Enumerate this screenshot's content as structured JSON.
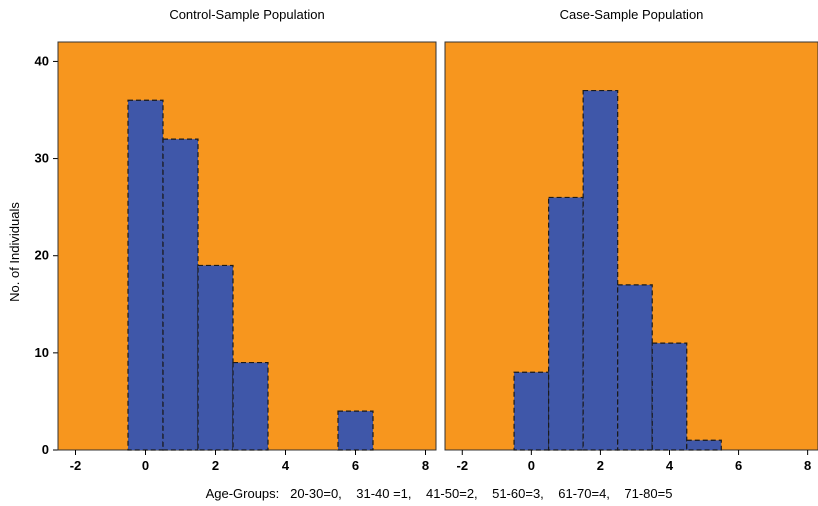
{
  "chart_data": {
    "type": "bar",
    "ylabel": "No. of Individuals",
    "xlabel": "Age-Groups:   20-30=0,    31-40 =1,    41-50=2,    51-60=3,    61-70=4,    71-80=5",
    "ylim": [
      0,
      42
    ],
    "yticks": [
      "0",
      "10",
      "20",
      "30",
      "40"
    ],
    "xlim": [
      -2.5,
      8.3
    ],
    "xticks": [
      "-2",
      "0",
      "2",
      "4",
      "6",
      "8"
    ],
    "grid": false,
    "plot_background": "#F7961E",
    "bar_color": "#3F57A9",
    "panels": [
      {
        "title": "Control-Sample Population",
        "x": [
          0,
          1,
          2,
          3,
          6
        ],
        "values": [
          36,
          32,
          19,
          9,
          4
        ]
      },
      {
        "title": "Case-Sample Population",
        "x": [
          0,
          1,
          2,
          3,
          4,
          5
        ],
        "values": [
          8,
          26,
          37,
          17,
          11,
          1
        ]
      }
    ]
  }
}
